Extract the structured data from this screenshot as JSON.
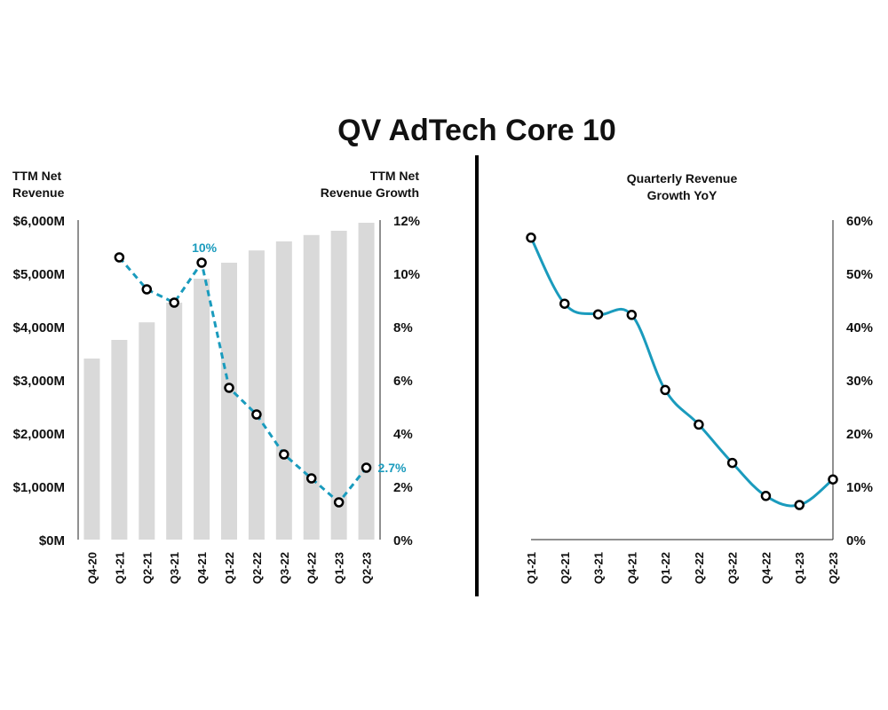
{
  "title": "QV AdTech Core 10",
  "colors": {
    "bar": "#d9d9d9",
    "line": "#1a9bbd",
    "marker_stroke": "#000000",
    "divider": "#000000"
  },
  "chart_data": [
    {
      "type": "bar",
      "combo_with": "line",
      "y_left_label_line1": "TTM Net",
      "y_left_label_line2": "Revenue",
      "y_right_label_line1": "TTM Net",
      "y_right_label_line2": "Revenue Growth",
      "categories": [
        "Q4-20",
        "Q1-21",
        "Q2-21",
        "Q3-21",
        "Q4-21",
        "Q1-22",
        "Q2-22",
        "Q3-22",
        "Q4-22",
        "Q1-23",
        "Q2-23"
      ],
      "bar_values": [
        3400,
        3750,
        4080,
        4450,
        4900,
        5200,
        5430,
        5600,
        5720,
        5800,
        5950
      ],
      "bar_ylim": [
        0,
        6000
      ],
      "bar_ticks": [
        "$0M",
        "$1,000M",
        "$2,000M",
        "$3,000M",
        "$4,000M",
        "$5,000M",
        "$6,000M"
      ],
      "line_values": [
        null,
        10.6,
        9.4,
        8.9,
        10.4,
        5.7,
        4.7,
        3.2,
        2.3,
        1.4,
        2.7
      ],
      "line_ylim": [
        0,
        12
      ],
      "line_ticks": [
        "0%",
        "2%",
        "4%",
        "6%",
        "8%",
        "10%",
        "12%"
      ],
      "annotations": [
        {
          "index": 4,
          "text": "10%"
        },
        {
          "index": 10,
          "text": "2.7%"
        }
      ]
    },
    {
      "type": "line",
      "title_line1": "Quarterly Revenue",
      "title_line2": "Growth YoY",
      "categories": [
        "Q1-21",
        "Q2-21",
        "Q3-21",
        "Q4-21",
        "Q1-22",
        "Q2-22",
        "Q3-22",
        "Q4-22",
        "Q1-23",
        "Q2-23"
      ],
      "values": [
        56.7,
        44.3,
        42.3,
        42.2,
        28.1,
        21.6,
        14.4,
        8.2,
        6.5,
        11.3
      ],
      "ylim": [
        0,
        60
      ],
      "ticks": [
        "0%",
        "10%",
        "20%",
        "30%",
        "40%",
        "50%",
        "60%"
      ]
    }
  ]
}
